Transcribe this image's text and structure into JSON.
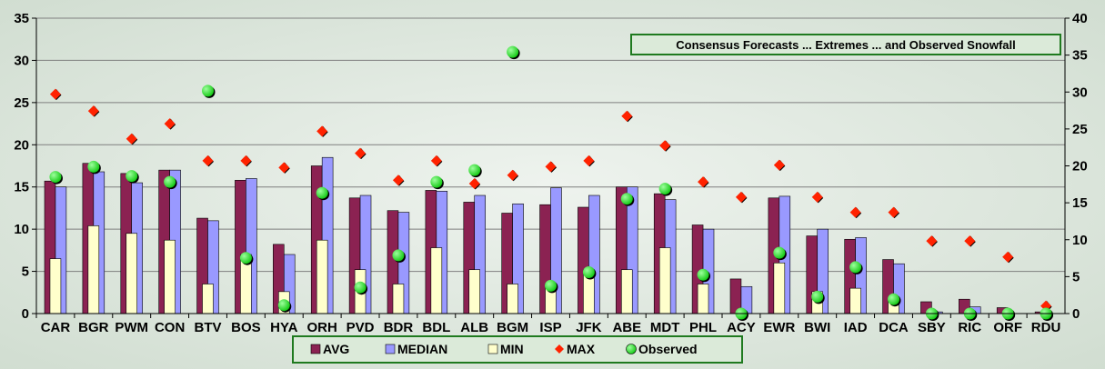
{
  "chart_data": {
    "type": "bar",
    "title": "Consensus Forecasts ... Extremes ... and Observed Snowfall",
    "categories": [
      "CAR",
      "BGR",
      "PWM",
      "CON",
      "BTV",
      "BOS",
      "HYA",
      "ORH",
      "PVD",
      "BDR",
      "BDL",
      "ALB",
      "BGM",
      "ISP",
      "JFK",
      "ABE",
      "MDT",
      "PHL",
      "ACY",
      "EWR",
      "BWI",
      "IAD",
      "DCA",
      "SBY",
      "RIC",
      "ORF",
      "RDU"
    ],
    "ylim_left": [
      0,
      35
    ],
    "yticks_left": [
      0,
      5,
      10,
      15,
      20,
      25,
      30,
      35
    ],
    "ylim_right": [
      0,
      40
    ],
    "yticks_right": [
      0,
      5,
      10,
      15,
      20,
      25,
      30,
      35,
      40
    ],
    "grid": "horizontal",
    "legend_position": "bottom",
    "series": [
      {
        "name": "AVG",
        "kind": "bar",
        "color": "#8b2252",
        "values": [
          15.7,
          17.8,
          16.6,
          17.0,
          11.3,
          15.8,
          8.2,
          17.5,
          13.7,
          12.2,
          14.6,
          13.2,
          11.9,
          12.9,
          12.6,
          15.0,
          14.2,
          10.5,
          4.1,
          13.7,
          9.2,
          8.8,
          6.4,
          1.4,
          1.7,
          0.7,
          0.2
        ]
      },
      {
        "name": "MEDIAN",
        "kind": "bar",
        "color": "#9999ff",
        "values": [
          15.0,
          16.8,
          15.5,
          17.0,
          11.0,
          16.0,
          7.0,
          18.5,
          14.0,
          12.0,
          14.5,
          14.0,
          13.0,
          14.9,
          14.0,
          15.0,
          13.5,
          10.0,
          3.2,
          13.9,
          10.0,
          9.0,
          5.9,
          0.2,
          0.8,
          0.0,
          0.0
        ]
      },
      {
        "name": "MIN",
        "kind": "bar",
        "color": "#ffffcc",
        "values": [
          6.5,
          10.4,
          9.5,
          8.7,
          3.5,
          7.0,
          2.6,
          8.7,
          5.2,
          3.5,
          7.8,
          5.2,
          3.5,
          3.5,
          5.2,
          5.2,
          7.8,
          3.5,
          0.0,
          6.0,
          2.6,
          3.0,
          1.5,
          0.0,
          0.0,
          0.0,
          0.0
        ]
      },
      {
        "name": "MAX",
        "kind": "marker",
        "marker": "diamond",
        "color": "#ff2200",
        "values": [
          26.0,
          24.0,
          20.7,
          22.5,
          18.1,
          18.1,
          17.3,
          21.6,
          19.0,
          15.8,
          18.1,
          15.4,
          16.4,
          17.4,
          18.1,
          23.4,
          19.9,
          15.6,
          13.8,
          17.6,
          13.8,
          12.0,
          12.0,
          8.6,
          8.6,
          6.7,
          0.9
        ]
      },
      {
        "name": "Observed",
        "kind": "marker",
        "marker": "circle",
        "color": "#22dd22",
        "values": [
          16.2,
          17.4,
          16.3,
          15.6,
          26.4,
          6.6,
          1.0,
          14.3,
          3.1,
          6.9,
          15.6,
          17.0,
          31.0,
          3.3,
          4.9,
          13.6,
          14.8,
          4.6,
          0.0,
          7.2,
          2.0,
          5.5,
          1.7,
          0.0,
          0.0,
          0.0,
          0.0
        ]
      }
    ]
  }
}
